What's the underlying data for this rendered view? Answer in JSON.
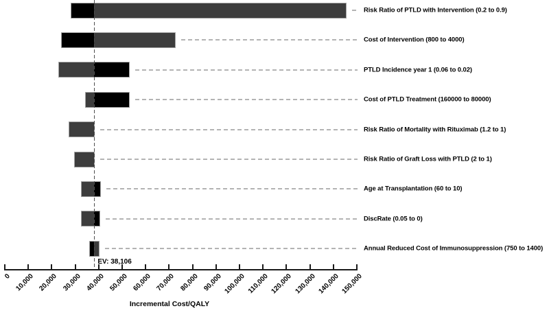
{
  "chart_data": {
    "type": "bar",
    "subtype": "tornado-diagram",
    "title": "",
    "xlabel": "Incremental Cost/QALY",
    "xlim": [
      0,
      150000
    ],
    "xticks": [
      0,
      10000,
      20000,
      30000,
      40000,
      50000,
      60000,
      70000,
      80000,
      90000,
      100000,
      110000,
      120000,
      130000,
      140000,
      150000
    ],
    "xtick_labels": [
      "0",
      "10,000",
      "20,000",
      "30,000",
      "40,000",
      "50,000",
      "60,000",
      "70,000",
      "80,000",
      "90,000",
      "100,000",
      "110,000",
      "120,000",
      "130,000",
      "140,000",
      "150,000"
    ],
    "ev": 38106,
    "ev_label": "EV: 38,106",
    "legend_position": "none",
    "grid": false,
    "colors": {
      "black": "#000000",
      "gray": "#3d3d3d",
      "leader": "#b3b3b3",
      "ev_line": "#4d4d4d",
      "axis": "#1a1a1a",
      "bar_border": "#a3a3a3"
    },
    "bars": [
      {
        "label": "Risk Ratio of PTLD with Intervention (0.2 to 0.9)",
        "segments": [
          {
            "from": 28400,
            "to": 38106,
            "color": "black"
          },
          {
            "from": 38106,
            "to": 145300,
            "color": "gray"
          }
        ]
      },
      {
        "label": "Cost of Intervention (800 to 4000)",
        "segments": [
          {
            "from": 24300,
            "to": 38106,
            "color": "black"
          },
          {
            "from": 38106,
            "to": 72500,
            "color": "gray"
          }
        ]
      },
      {
        "label": "PTLD Incidence year 1 (0.06 to 0.02)",
        "segments": [
          {
            "from": 23100,
            "to": 38106,
            "color": "gray"
          },
          {
            "from": 38106,
            "to": 52900,
            "color": "black"
          }
        ]
      },
      {
        "label": "Cost of PTLD Treatment (160000 to 80000)",
        "segments": [
          {
            "from": 34500,
            "to": 38106,
            "color": "gray"
          },
          {
            "from": 38106,
            "to": 52900,
            "color": "black"
          }
        ]
      },
      {
        "label": "Risk Ratio of Mortality with Rituximab (1.2 to 1)",
        "segments": [
          {
            "from": 27600,
            "to": 38106,
            "color": "gray"
          }
        ]
      },
      {
        "label": "Risk Ratio of Graft Loss with PTLD (2 to 1)",
        "segments": [
          {
            "from": 29800,
            "to": 38106,
            "color": "gray"
          }
        ]
      },
      {
        "label": "Age at Transplantation (60 to 10)",
        "segments": [
          {
            "from": 32700,
            "to": 38106,
            "color": "gray"
          },
          {
            "from": 38106,
            "to": 40600,
            "color": "black"
          }
        ]
      },
      {
        "label": "DiscRate (0.05 to 0)",
        "segments": [
          {
            "from": 32700,
            "to": 38106,
            "color": "gray"
          },
          {
            "from": 38106,
            "to": 40400,
            "color": "black"
          }
        ]
      },
      {
        "label": "Annual Reduced Cost of Immunosuppression (750 to 1400)",
        "segments": [
          {
            "from": 36300,
            "to": 38106,
            "color": "black"
          },
          {
            "from": 38106,
            "to": 40000,
            "color": "gray"
          }
        ]
      }
    ]
  }
}
